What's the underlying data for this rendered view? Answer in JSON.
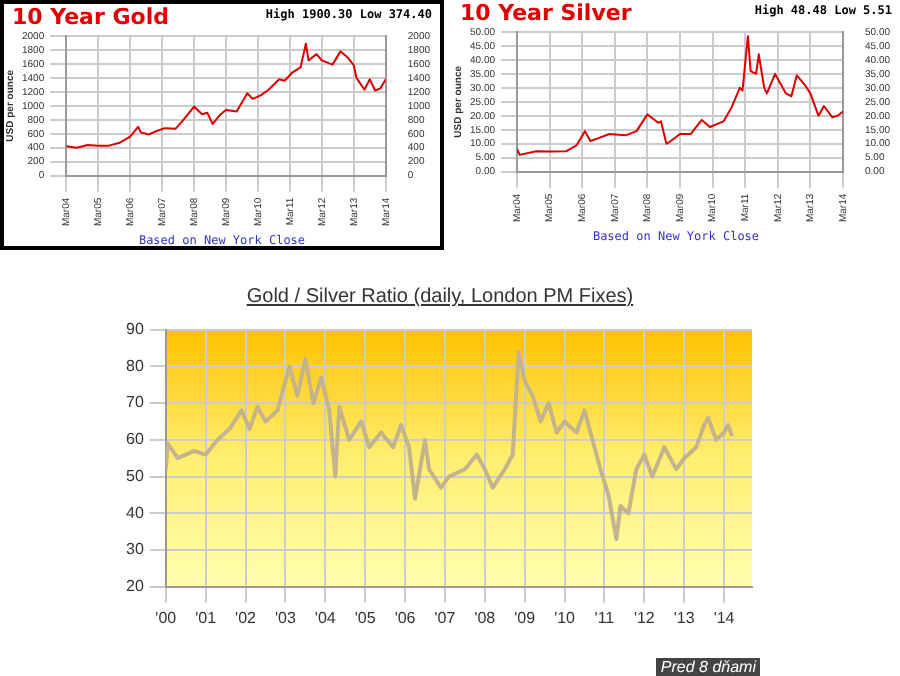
{
  "chart_data": [
    {
      "type": "line",
      "title": "10 Year Gold",
      "ylabel": "USD per ounce",
      "annotations": [
        "High 1900.30 Low 374.40",
        "Based on New York Close"
      ],
      "series": [
        {
          "color": "#dd0000",
          "x": [
            "2004-03",
            "2004-07",
            "2004-11",
            "2005-03",
            "2005-07",
            "2005-11",
            "2006-03",
            "2006-06",
            "2006-07",
            "2006-10",
            "2007-01",
            "2007-04",
            "2007-08",
            "2007-11",
            "2008-03",
            "2008-06",
            "2008-08",
            "2008-10",
            "2009-01",
            "2009-03",
            "2009-07",
            "2009-11",
            "2010-01",
            "2010-04",
            "2010-07",
            "2010-11",
            "2011-01",
            "2011-04",
            "2011-07",
            "2011-09",
            "2011-10",
            "2012-01",
            "2012-03",
            "2012-07",
            "2012-10",
            "2013-01",
            "2013-03",
            "2013-04",
            "2013-07",
            "2013-09",
            "2013-11",
            "2014-01",
            "2014-03"
          ],
          "values": [
            420,
            400,
            440,
            430,
            430,
            470,
            560,
            700,
            620,
            590,
            640,
            680,
            670,
            800,
            990,
            880,
            900,
            740,
            880,
            940,
            920,
            1180,
            1100,
            1150,
            1230,
            1380,
            1360,
            1480,
            1550,
            1890,
            1650,
            1740,
            1650,
            1590,
            1780,
            1680,
            1580,
            1400,
            1230,
            1380,
            1220,
            1250,
            1380
          ]
        }
      ],
      "xlim": [
        "2004-03",
        "2014-03"
      ],
      "xticks": [
        {
          "value": "2004-03",
          "label": "Mar04"
        },
        {
          "value": "2005-03",
          "label": "Mar05"
        },
        {
          "value": "2006-03",
          "label": "Mar06"
        },
        {
          "value": "2007-03",
          "label": "Mar07"
        },
        {
          "value": "2008-03",
          "label": "Mar08"
        },
        {
          "value": "2009-03",
          "label": "Mar09"
        },
        {
          "value": "2010-03",
          "label": "Mar10"
        },
        {
          "value": "2011-03",
          "label": "Mar11"
        },
        {
          "value": "2012-03",
          "label": "Mar12"
        },
        {
          "value": "2013-03",
          "label": "Mar13"
        },
        {
          "value": "2014-03",
          "label": "Mar14"
        }
      ],
      "ylim": [
        0,
        2000
      ],
      "yticks": [
        0,
        200,
        400,
        600,
        800,
        1000,
        1200,
        1400,
        1600,
        1800,
        2000
      ],
      "y2lim": [
        0,
        2000
      ],
      "y2ticks": [
        0,
        200,
        400,
        600,
        800,
        1000,
        1200,
        1400,
        1600,
        1800,
        2000
      ],
      "grid": true,
      "legend": false
    },
    {
      "type": "line",
      "title": "10 Year Silver",
      "ylabel": "USD per ounce",
      "annotations": [
        "High 48.48 Low 5.51",
        "Based on New York Close"
      ],
      "series": [
        {
          "color": "#dd0000",
          "x": [
            "2004-03",
            "2004-04",
            "2004-10",
            "2005-03",
            "2005-09",
            "2006-01",
            "2006-04",
            "2006-06",
            "2006-09",
            "2007-01",
            "2007-07",
            "2007-11",
            "2008-03",
            "2008-07",
            "2008-08",
            "2008-10",
            "2008-11",
            "2009-03",
            "2009-07",
            "2009-11",
            "2010-02",
            "2010-07",
            "2010-10",
            "2011-01",
            "2011-02",
            "2011-04",
            "2011-05",
            "2011-07",
            "2011-08",
            "2011-10",
            "2011-11",
            "2012-02",
            "2012-06",
            "2012-08",
            "2012-10",
            "2013-01",
            "2013-03",
            "2013-06",
            "2013-08",
            "2013-11",
            "2014-01",
            "2014-03"
          ],
          "values": [
            8,
            6,
            7.3,
            7.2,
            7.3,
            9.5,
            14.5,
            11,
            12,
            13.5,
            13,
            14.5,
            20.5,
            17.5,
            18,
            10,
            10.5,
            13.5,
            13.5,
            18.5,
            16,
            18,
            23,
            30,
            29,
            48.5,
            36,
            35,
            42,
            30,
            28,
            35,
            28,
            27,
            34.5,
            31,
            28,
            20,
            23.5,
            19.5,
            20,
            21.5
          ]
        }
      ],
      "xlim": [
        "2004-03",
        "2014-03"
      ],
      "xticks": [
        {
          "value": "2004-03",
          "label": "Mar04"
        },
        {
          "value": "2005-03",
          "label": "Mar05"
        },
        {
          "value": "2006-03",
          "label": "Mar06"
        },
        {
          "value": "2007-03",
          "label": "Mar07"
        },
        {
          "value": "2008-03",
          "label": "Mar08"
        },
        {
          "value": "2009-03",
          "label": "Mar09"
        },
        {
          "value": "2010-03",
          "label": "Mar10"
        },
        {
          "value": "2011-03",
          "label": "Mar11"
        },
        {
          "value": "2012-03",
          "label": "Mar12"
        },
        {
          "value": "2013-03",
          "label": "Mar13"
        },
        {
          "value": "2014-03",
          "label": "Mar14"
        }
      ],
      "ylim": [
        0,
        50
      ],
      "yticks": [
        {
          "value": 0,
          "label": "0.00"
        },
        {
          "value": 5,
          "label": "5.00"
        },
        {
          "value": 10,
          "label": "10.00"
        },
        {
          "value": 15,
          "label": "15.00"
        },
        {
          "value": 20,
          "label": "20.00"
        },
        {
          "value": 25,
          "label": "25.00"
        },
        {
          "value": 30,
          "label": "30.00"
        },
        {
          "value": 35,
          "label": "35.00"
        },
        {
          "value": 40,
          "label": "40.00"
        },
        {
          "value": 45,
          "label": "45.00"
        },
        {
          "value": 50,
          "label": "50.00"
        }
      ],
      "y2lim": [
        0,
        50
      ],
      "y2ticks": [
        {
          "value": 0,
          "label": "0.00"
        },
        {
          "value": 5,
          "label": "5.00"
        },
        {
          "value": 10,
          "label": "10.00"
        },
        {
          "value": 15,
          "label": "15.00"
        },
        {
          "value": 20,
          "label": "20.00"
        },
        {
          "value": 25,
          "label": "25.00"
        },
        {
          "value": 30,
          "label": "30.00"
        },
        {
          "value": 35,
          "label": "35.00"
        },
        {
          "value": 40,
          "label": "40.00"
        },
        {
          "value": 45,
          "label": "45.00"
        },
        {
          "value": 50,
          "label": "50.00"
        }
      ],
      "grid": true,
      "legend": false
    },
    {
      "type": "line",
      "title": "Gold / Silver Ratio (daily, London PM Fixes)",
      "annotations": [
        "Pred 8 dňami"
      ],
      "series": [
        {
          "color": "#c4b48c",
          "x": [
            2000.0,
            2000.05,
            2000.3,
            2000.7,
            2001.0,
            2001.3,
            2001.6,
            2001.9,
            2002.1,
            2002.3,
            2002.5,
            2002.8,
            2003.0,
            2003.1,
            2003.3,
            2003.5,
            2003.7,
            2003.9,
            2004.1,
            2004.25,
            2004.35,
            2004.6,
            2004.9,
            2005.1,
            2005.4,
            2005.7,
            2005.9,
            2006.1,
            2006.25,
            2006.5,
            2006.6,
            2006.9,
            2007.1,
            2007.5,
            2007.8,
            2008.0,
            2008.2,
            2008.5,
            2008.7,
            2008.85,
            2009.0,
            2009.2,
            2009.4,
            2009.6,
            2009.8,
            2010.0,
            2010.3,
            2010.5,
            2010.7,
            2010.9,
            2011.1,
            2011.3,
            2011.4,
            2011.6,
            2011.8,
            2012.0,
            2012.2,
            2012.5,
            2012.8,
            2013.0,
            2013.3,
            2013.5,
            2013.6,
            2013.8,
            2014.0,
            2014.1,
            2014.2
          ],
          "values": [
            52,
            59,
            55,
            57,
            56,
            60,
            63,
            68,
            63,
            69,
            65,
            68,
            76,
            80,
            72,
            82,
            70,
            77,
            68,
            50,
            69,
            60,
            65,
            58,
            62,
            58,
            64,
            58,
            44,
            60,
            52,
            47,
            50,
            52,
            56,
            52,
            47,
            52,
            56,
            84,
            76,
            72,
            65,
            70,
            62,
            65,
            62,
            68,
            60,
            52,
            45,
            33,
            42,
            40,
            52,
            56,
            50,
            58,
            52,
            55,
            58,
            64,
            66,
            60,
            62,
            64,
            61
          ]
        }
      ],
      "xlim": [
        2000,
        2014.7
      ],
      "xticks": [
        {
          "value": 2000,
          "label": "'00"
        },
        {
          "value": 2001,
          "label": "'01"
        },
        {
          "value": 2002,
          "label": "'02"
        },
        {
          "value": 2003,
          "label": "'03"
        },
        {
          "value": 2004,
          "label": "'04"
        },
        {
          "value": 2005,
          "label": "'05"
        },
        {
          "value": 2006,
          "label": "'06"
        },
        {
          "value": 2007,
          "label": "'07"
        },
        {
          "value": 2008,
          "label": "'08"
        },
        {
          "value": 2009,
          "label": "'09"
        },
        {
          "value": 2010,
          "label": "'10"
        },
        {
          "value": 2011,
          "label": "'11"
        },
        {
          "value": 2012,
          "label": "'12"
        },
        {
          "value": 2013,
          "label": "'13"
        },
        {
          "value": 2014,
          "label": "'14"
        }
      ],
      "ylim": [
        20,
        90
      ],
      "yticks": [
        20,
        30,
        40,
        50,
        60,
        70,
        80,
        90
      ],
      "grid": true,
      "legend": false
    }
  ]
}
